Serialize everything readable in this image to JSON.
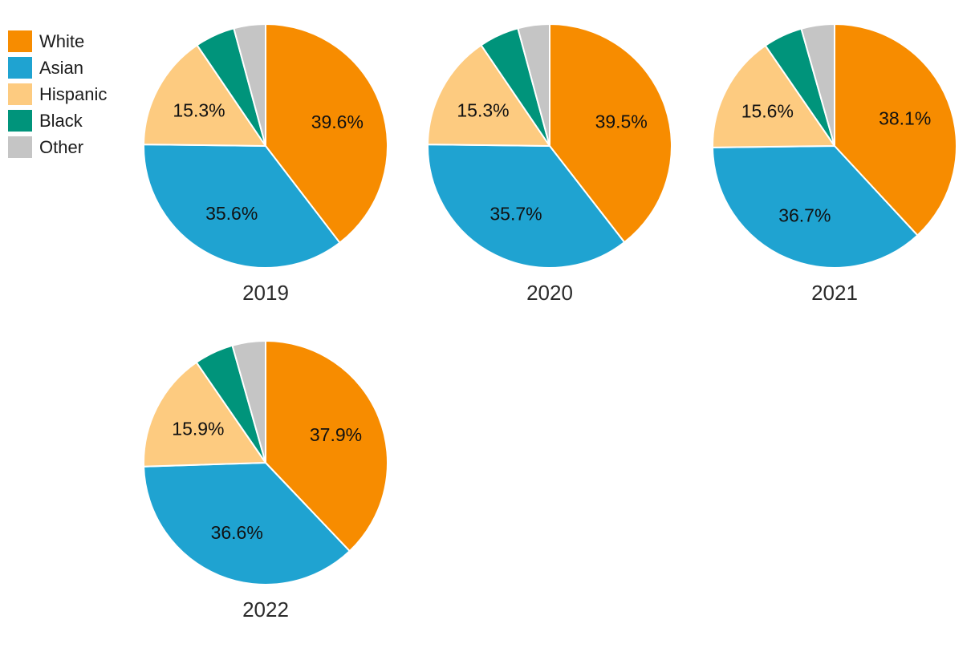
{
  "palette": {
    "White": "#F78C00",
    "Asian": "#1FA3D1",
    "Hispanic": "#FDCB80",
    "Black": "#00947B",
    "Other": "#C5C5C5"
  },
  "legend": {
    "position": "top-left",
    "items": [
      {
        "label": "White",
        "color": "#F78C00"
      },
      {
        "label": "Asian",
        "color": "#1FA3D1"
      },
      {
        "label": "Hispanic",
        "color": "#FDCB80"
      },
      {
        "label": "Black",
        "color": "#00947B"
      },
      {
        "label": "Other",
        "color": "#C5C5C5"
      }
    ]
  },
  "chart_data": [
    {
      "type": "pie",
      "title": "2019",
      "categories": [
        "White",
        "Asian",
        "Hispanic",
        "Black",
        "Other"
      ],
      "values": [
        39.6,
        35.6,
        15.3,
        5.3,
        4.2
      ],
      "labels": [
        "39.6%",
        "35.6%",
        "15.3%",
        "",
        ""
      ],
      "unlabeled_slices_estimated": true,
      "layout": {
        "start_angle": "top",
        "direction": "clockwise",
        "labels": "inside",
        "hole": 0
      }
    },
    {
      "type": "pie",
      "title": "2020",
      "categories": [
        "White",
        "Asian",
        "Hispanic",
        "Black",
        "Other"
      ],
      "values": [
        39.5,
        35.7,
        15.3,
        5.3,
        4.2
      ],
      "labels": [
        "39.5%",
        "35.7%",
        "15.3%",
        "",
        ""
      ],
      "unlabeled_slices_estimated": true,
      "layout": {
        "start_angle": "top",
        "direction": "clockwise",
        "labels": "inside",
        "hole": 0
      }
    },
    {
      "type": "pie",
      "title": "2021",
      "categories": [
        "White",
        "Asian",
        "Hispanic",
        "Black",
        "Other"
      ],
      "values": [
        38.1,
        36.7,
        15.6,
        5.2,
        4.4
      ],
      "labels": [
        "38.1%",
        "36.7%",
        "15.6%",
        "",
        ""
      ],
      "unlabeled_slices_estimated": true,
      "layout": {
        "start_angle": "top",
        "direction": "clockwise",
        "labels": "inside",
        "hole": 0
      }
    },
    {
      "type": "pie",
      "title": "2022",
      "categories": [
        "White",
        "Asian",
        "Hispanic",
        "Black",
        "Other"
      ],
      "values": [
        37.9,
        36.6,
        15.9,
        5.2,
        4.4
      ],
      "labels": [
        "37.9%",
        "36.6%",
        "15.9%",
        "",
        ""
      ],
      "unlabeled_slices_estimated": true,
      "layout": {
        "start_angle": "top",
        "direction": "clockwise",
        "labels": "inside",
        "hole": 0
      }
    }
  ]
}
